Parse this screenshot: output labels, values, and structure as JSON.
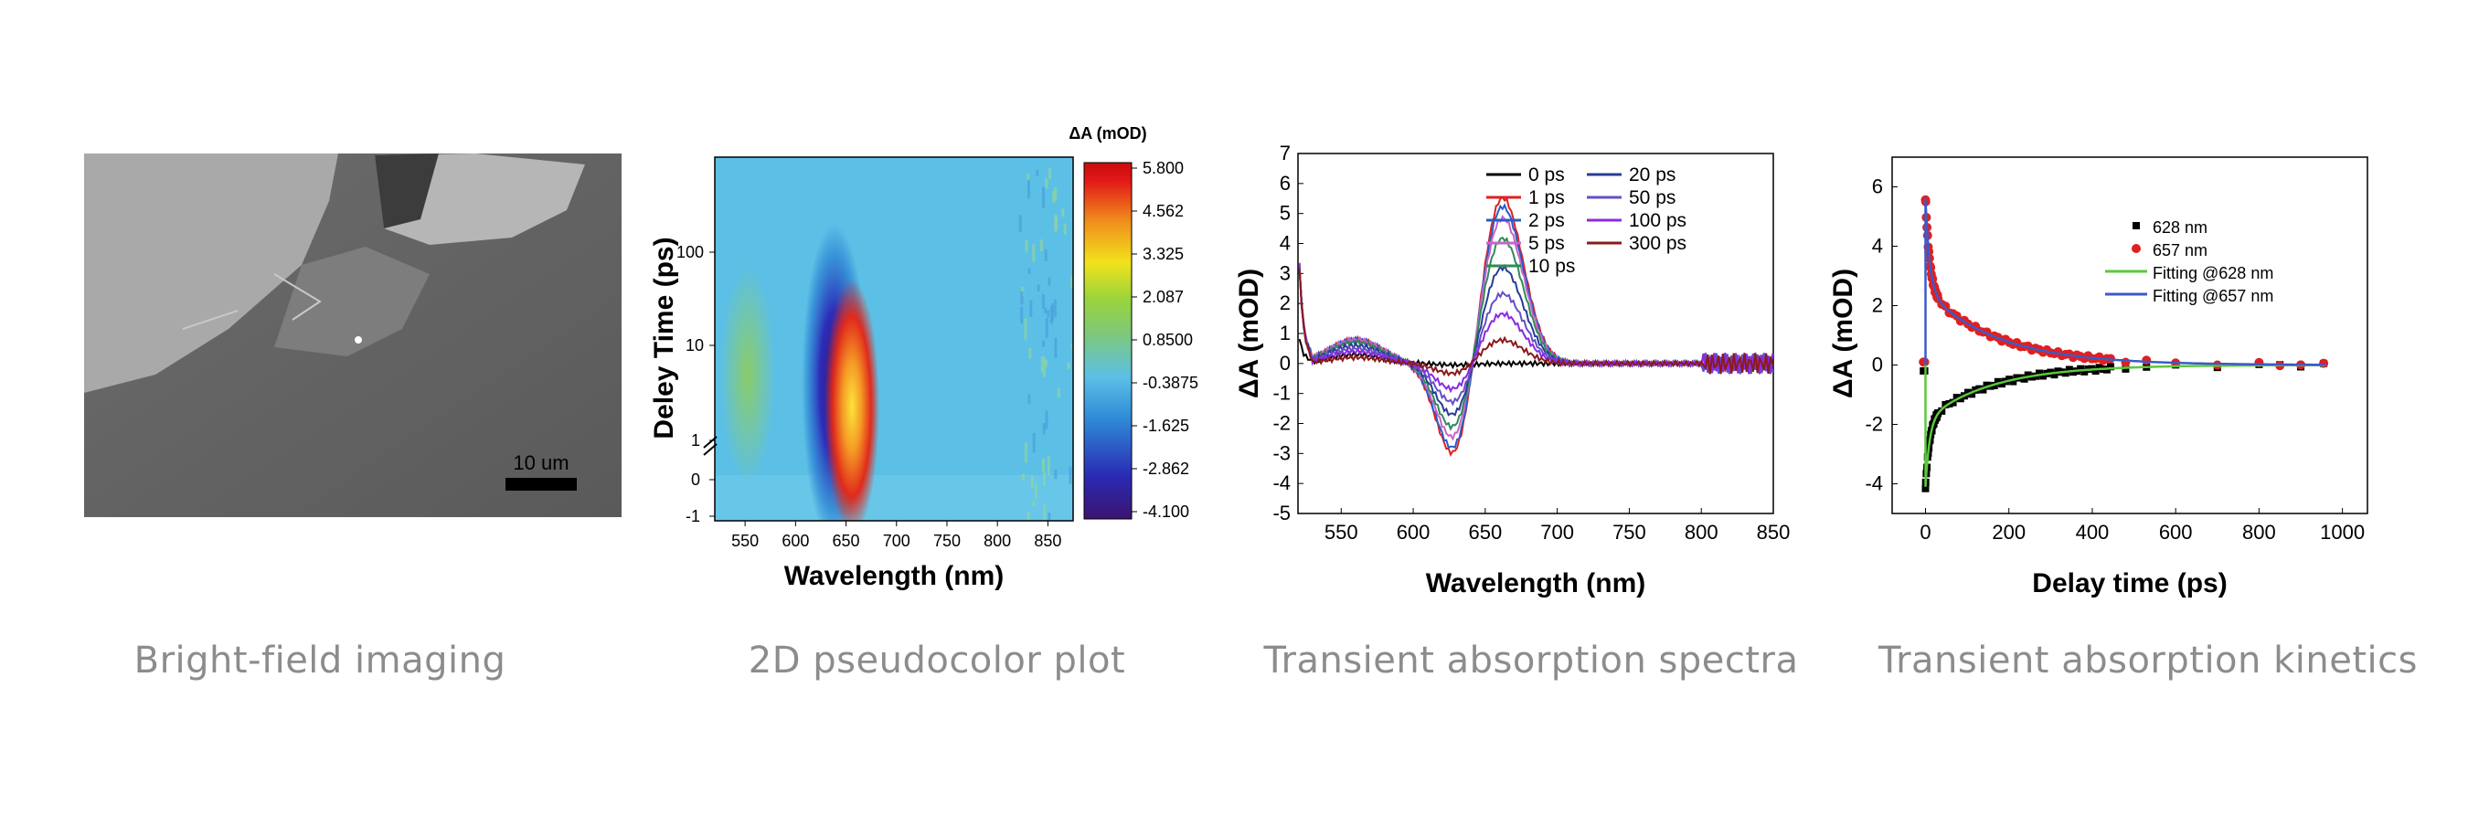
{
  "captions": {
    "bright_field": "Bright-field imaging",
    "pseudocolor": "2D pseudocolor plot",
    "spectra": "Transient absorption spectra",
    "kinetics": "Transient absorption kinetics"
  },
  "bright_field": {
    "scale_bar_label": "10 um"
  },
  "chart_data": [
    {
      "id": "pseudocolor",
      "type": "heatmap",
      "title": "",
      "xlabel": "Wavelength (nm)",
      "ylabel": "Deley Time (ps)",
      "xlim": [
        520,
        875
      ],
      "xticks": [
        550,
        600,
        650,
        700,
        750,
        800,
        850
      ],
      "yticks_linear": [
        -1,
        0,
        1
      ],
      "yticks_log": [
        10,
        100
      ],
      "colorbar_label": "ΔA (mOD)",
      "colorbar_ticks": [
        "5.800",
        "4.562",
        "3.325",
        "2.087",
        "0.8500",
        "-0.3875",
        "-1.625",
        "-2.862",
        "-4.100"
      ],
      "features": [
        {
          "center_nm": 630,
          "sign": "negative",
          "peak_mOD": -3.5
        },
        {
          "center_nm": 657,
          "sign": "positive",
          "peak_mOD": 5.7
        },
        {
          "center_nm": 555,
          "sign": "positive",
          "peak_mOD": 0.8
        }
      ]
    },
    {
      "id": "spectra",
      "type": "line",
      "title": "",
      "xlabel": "Wavelength (nm)",
      "ylabel": "ΔA (mOD)",
      "xlim": [
        520,
        850
      ],
      "ylim": [
        -5,
        7
      ],
      "xticks": [
        550,
        600,
        650,
        700,
        750,
        800,
        850
      ],
      "yticks": [
        -5,
        -4,
        -3,
        -2,
        -1,
        0,
        1,
        2,
        3,
        4,
        5,
        6,
        7
      ],
      "legend": "top-right",
      "series": [
        {
          "name": "0 ps",
          "color": "#000000",
          "bleach": -0.05,
          "peak": 0.0,
          "blue": 0.3
        },
        {
          "name": "1 ps",
          "color": "#e02020",
          "bleach": -3.5,
          "peak": 5.7,
          "blue": 0.8
        },
        {
          "name": "2 ps",
          "color": "#2a5cc8",
          "bleach": -3.3,
          "peak": 5.4,
          "blue": 0.8
        },
        {
          "name": "5 ps",
          "color": "#c864c8",
          "bleach": -2.9,
          "peak": 5.0,
          "blue": 0.8
        },
        {
          "name": "10 ps",
          "color": "#2e8b57",
          "bleach": -2.5,
          "peak": 4.3,
          "blue": 0.7
        },
        {
          "name": "20 ps",
          "color": "#283c96",
          "bleach": -2.0,
          "peak": 3.3,
          "blue": 0.6
        },
        {
          "name": "50 ps",
          "color": "#6450c8",
          "bleach": -1.5,
          "peak": 2.4,
          "blue": 0.5
        },
        {
          "name": "100 ps",
          "color": "#8a2be2",
          "bleach": -1.0,
          "peak": 1.7,
          "blue": 0.4
        },
        {
          "name": "300 ps",
          "color": "#8b1a1a",
          "bleach": -0.4,
          "peak": 0.8,
          "blue": 0.2
        }
      ]
    },
    {
      "id": "kinetics",
      "type": "scatter",
      "title": "",
      "xlabel": "Delay time (ps)",
      "ylabel": "ΔA (mOD)",
      "xlim": [
        -80,
        1060
      ],
      "ylim": [
        -5,
        7
      ],
      "xticks": [
        0,
        200,
        400,
        600,
        800,
        1000
      ],
      "yticks": [
        -4,
        -2,
        0,
        2,
        4,
        6
      ],
      "legend": "top-right",
      "series": [
        {
          "name": "628 nm",
          "kind": "points",
          "marker": "square",
          "color": "#000000",
          "amp": -4.1,
          "fast": 0.55,
          "tau_fast": 10,
          "tau_slow": 160
        },
        {
          "name": "657 nm",
          "kind": "points",
          "marker": "circle",
          "color": "#e02020",
          "amp": 5.6,
          "fast": 0.55,
          "tau_fast": 10,
          "tau_slow": 170
        },
        {
          "name": "Fitting @628 nm",
          "kind": "line",
          "color": "#5ac83c",
          "amp": -4.1,
          "fast": 0.55,
          "tau_fast": 10,
          "tau_slow": 160
        },
        {
          "name": "Fitting @657 nm",
          "kind": "line",
          "color": "#3c5ac8",
          "amp": 5.6,
          "fast": 0.55,
          "tau_fast": 10,
          "tau_slow": 170
        }
      ]
    }
  ]
}
